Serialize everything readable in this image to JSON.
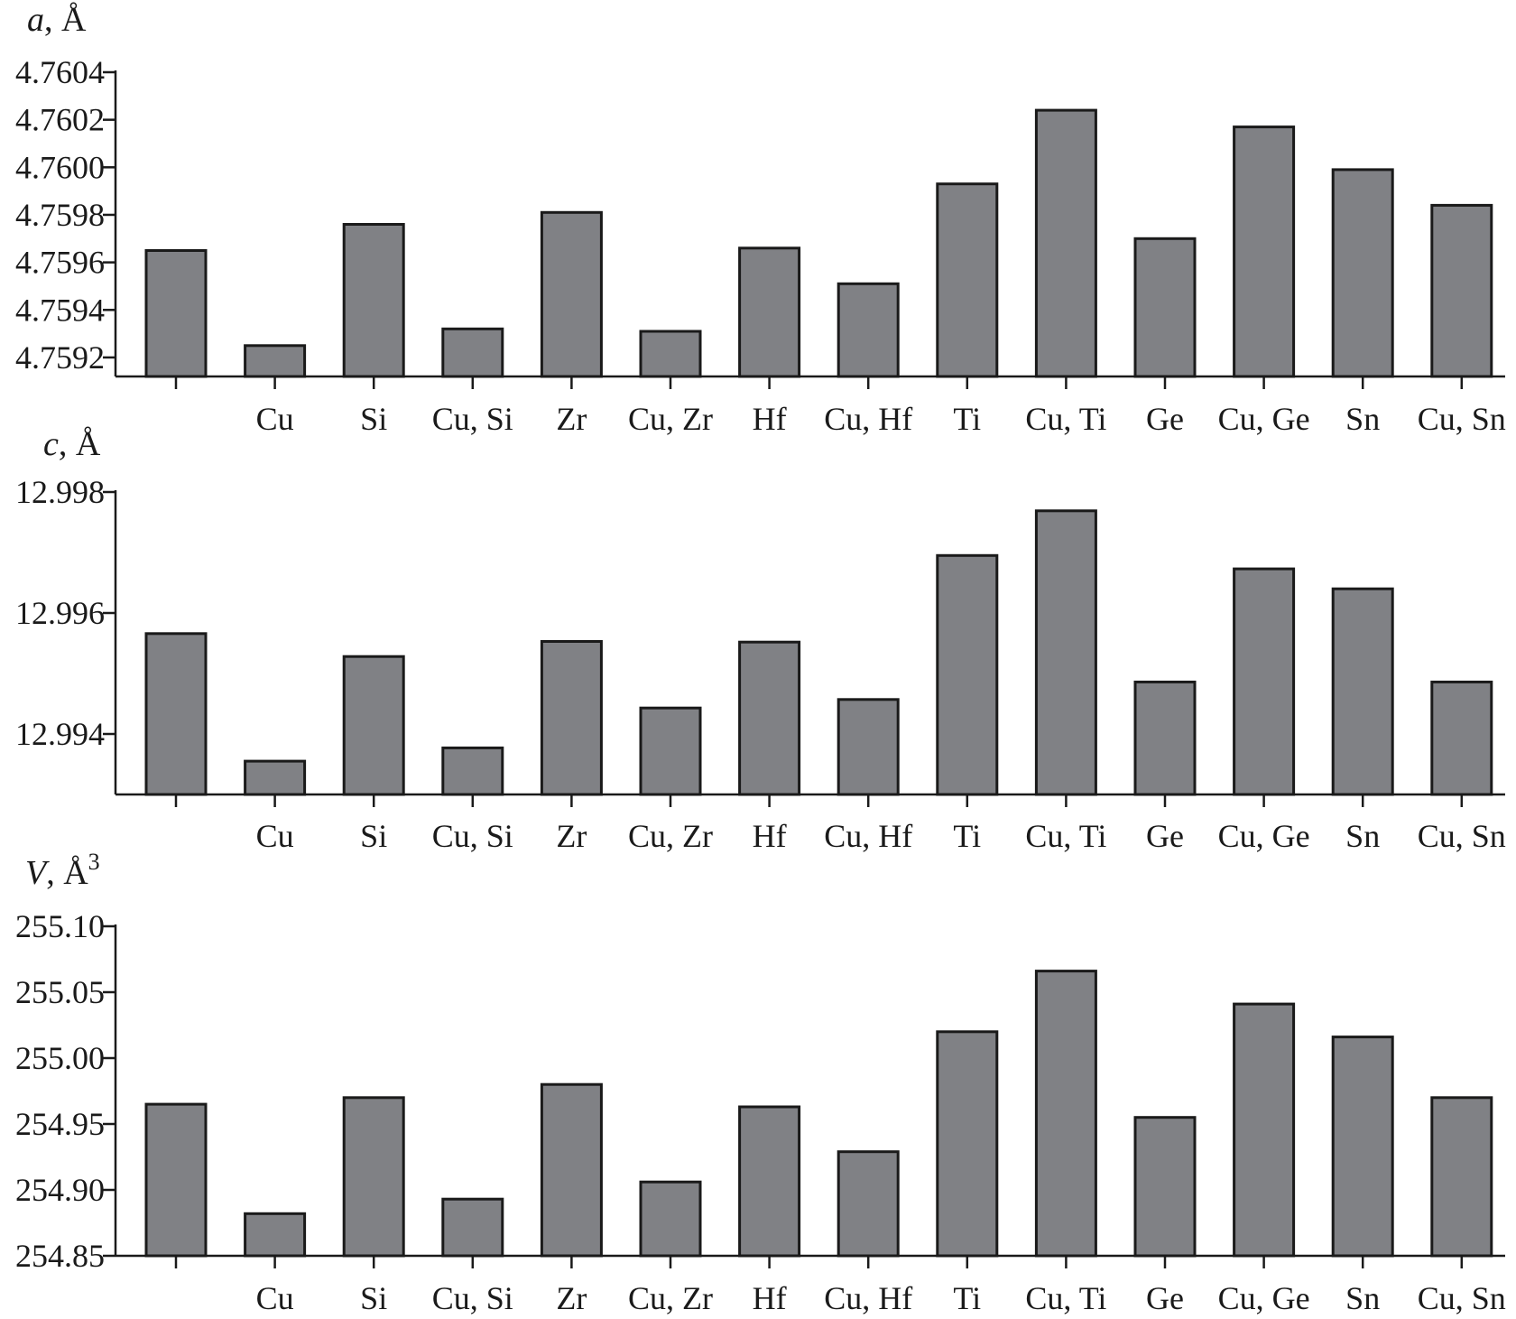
{
  "colors": {
    "bar_fill": "#808185",
    "bar_stroke": "#1a1a1a",
    "text": "#1a1a1a"
  },
  "chart_data": [
    {
      "type": "bar",
      "title": "",
      "ylabel_var": "a",
      "ylabel_unit": ", Å",
      "ylabel_sup": "",
      "categories": [
        "",
        "Cu",
        "Si",
        "Cu, Si",
        "Zr",
        "Cu, Zr",
        "Hf",
        "Cu, Hf",
        "Ti",
        "Cu, Ti",
        "Ge",
        "Cu, Ge",
        "Sn",
        "Cu, Sn"
      ],
      "values": [
        4.75965,
        4.75925,
        4.75976,
        4.75932,
        4.75981,
        4.75931,
        4.75966,
        4.75951,
        4.75993,
        4.76024,
        4.7597,
        4.76017,
        4.75999,
        4.75984
      ],
      "ylim": [
        4.75912,
        4.7604
      ],
      "yticks": [
        4.7592,
        4.7594,
        4.7596,
        4.7598,
        4.76,
        4.7602,
        4.7604
      ],
      "ytick_labels": [
        "4.7592",
        "4.7594",
        "4.7596",
        "4.7598",
        "4.7600",
        "4.7602",
        "4.7604"
      ]
    },
    {
      "type": "bar",
      "title": "",
      "ylabel_var": "c",
      "ylabel_unit": ", Å",
      "ylabel_sup": "",
      "categories": [
        "",
        "Cu",
        "Si",
        "Cu, Si",
        "Zr",
        "Cu, Zr",
        "Hf",
        "Cu, Hf",
        "Ti",
        "Cu, Ti",
        "Ge",
        "Cu, Ge",
        "Sn",
        "Cu, Sn"
      ],
      "values": [
        12.99566,
        12.99355,
        12.99528,
        12.99377,
        12.99553,
        12.99443,
        12.99552,
        12.99457,
        12.99695,
        12.99769,
        12.99486,
        12.99673,
        12.9964,
        12.99486
      ],
      "ylim": [
        12.993,
        12.998
      ],
      "yticks": [
        12.994,
        12.996,
        12.998
      ],
      "ytick_labels": [
        "12.994",
        "12.996",
        "12.998"
      ]
    },
    {
      "type": "bar",
      "title": "",
      "ylabel_var": "V",
      "ylabel_unit": ", Å",
      "ylabel_sup": "3",
      "categories": [
        "",
        "Cu",
        "Si",
        "Cu, Si",
        "Zr",
        "Cu, Zr",
        "Hf",
        "Cu, Hf",
        "Ti",
        "Cu, Ti",
        "Ge",
        "Cu, Ge",
        "Sn",
        "Cu, Sn"
      ],
      "values": [
        254.965,
        254.882,
        254.97,
        254.893,
        254.98,
        254.906,
        254.963,
        254.929,
        255.02,
        255.066,
        254.955,
        255.041,
        255.016,
        254.97
      ],
      "ylim": [
        254.85,
        255.1
      ],
      "yticks": [
        254.85,
        254.9,
        254.95,
        255.0,
        255.05,
        255.1
      ],
      "ytick_labels": [
        "254.85",
        "254.90",
        "254.95",
        "255.00",
        "255.05",
        "255.10"
      ]
    }
  ]
}
